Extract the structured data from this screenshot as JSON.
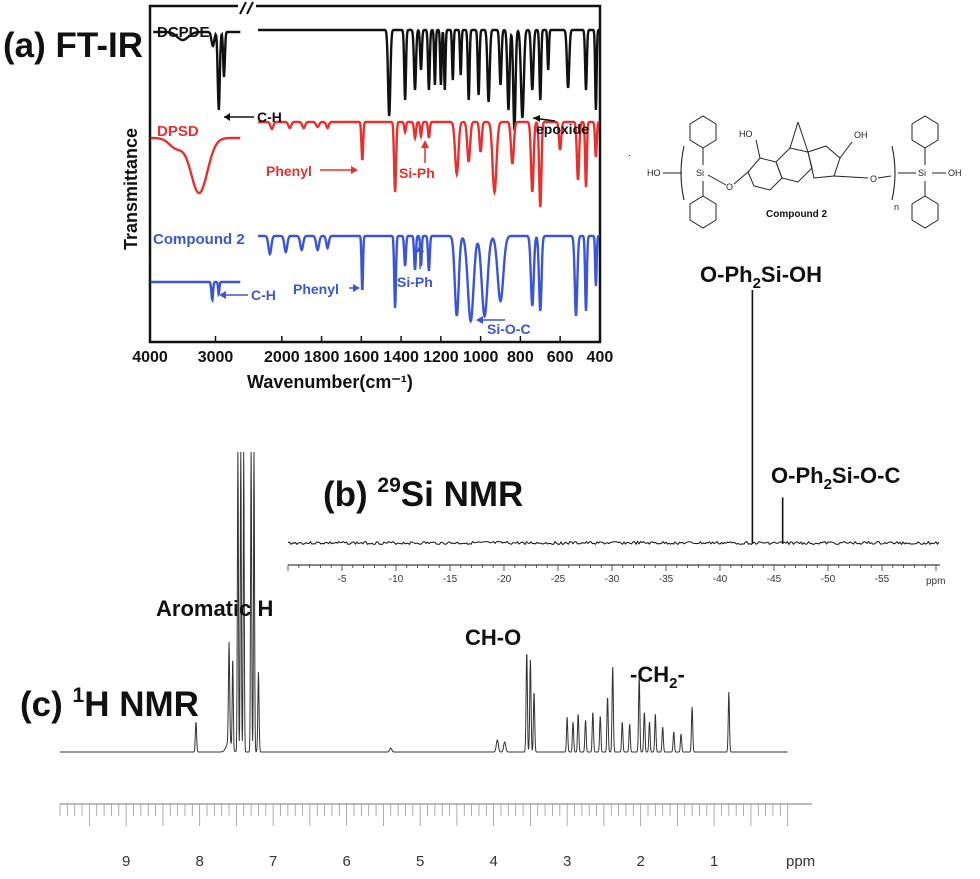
{
  "panels": {
    "ftir_label": "(a) FT-IR",
    "si_label_pre": "(b) ",
    "si_label_sup": "29",
    "si_label_post": "Si NMR",
    "h_label_pre": "(c) ",
    "h_label_sup": "1",
    "h_label_post": "H NMR"
  },
  "structure": {
    "caption": "Compound 2",
    "ho_left": "HO",
    "oh_right": "OH",
    "si": "Si",
    "o": "O",
    "n": "n",
    "ho_top1": "HO",
    "oh_top2": "OH"
  },
  "chart_data": [
    {
      "type": "line",
      "title": "(a) FT-IR",
      "xlabel": "Wavenumber(cm⁻¹)",
      "ylabel": "Transmittance",
      "x_ticks": [
        "4000",
        "3000",
        "2000",
        "1800",
        "1600",
        "1400",
        "1200",
        "1000",
        "800",
        "600",
        "400"
      ],
      "x_break": [
        2600,
        2150
      ],
      "colors": {
        "DCPDE": "#111111",
        "DPSD": "#e8302e",
        "Compound 2": "#3a55d6"
      },
      "series": [
        {
          "name": "DCPDE",
          "annotations": [
            "C-H",
            "epoxide"
          ]
        },
        {
          "name": "DPSD",
          "annotations": [
            "Phenyl",
            "Si-Ph"
          ]
        },
        {
          "name": "Compound 2",
          "annotations": [
            "C-H",
            "Phenyl",
            "Si-Ph",
            "Si-O-C"
          ]
        }
      ]
    },
    {
      "type": "line",
      "title": "(b) 29Si NMR",
      "x_ticks": [
        "-5",
        "-10",
        "-15",
        "-20",
        "-25",
        "-30",
        "-35",
        "-40",
        "-45",
        "-50",
        "-55"
      ],
      "x_unit": "ppm",
      "xlim": [
        0,
        -60
      ],
      "peaks": [
        {
          "label": "O-Ph2Si-OH",
          "ppm": -43.0,
          "rel_height": 1.0
        },
        {
          "label": "O-Ph2Si-O-C",
          "ppm": -45.8,
          "rel_height": 0.18
        }
      ]
    },
    {
      "type": "line",
      "title": "(c) 1H NMR",
      "x_ticks": [
        "9",
        "8",
        "7",
        "6",
        "5",
        "4",
        "3",
        "2",
        "1"
      ],
      "x_unit": "ppm",
      "xlim": [
        9.9,
        0
      ],
      "annotations": [
        {
          "label": "Aromatic H",
          "ppm": 7.4
        },
        {
          "label": "CH-O",
          "ppm": 3.5
        },
        {
          "label": "-CH2-",
          "ppm": 2.0
        }
      ]
    }
  ]
}
